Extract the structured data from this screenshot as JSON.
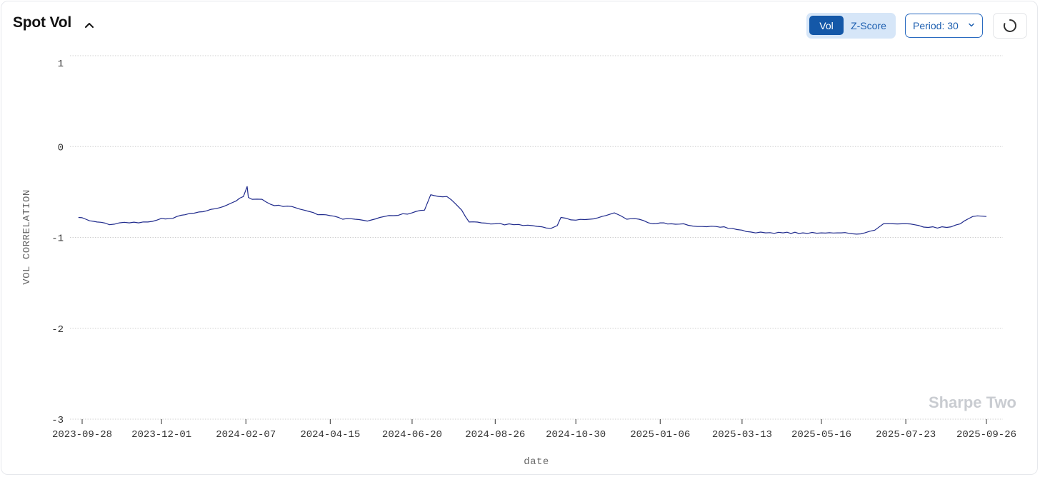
{
  "header": {
    "title": "Spot Vol",
    "collapse_icon": "chevron-up-icon",
    "refresh_icon": "spinner-icon"
  },
  "toggle": {
    "options": [
      "Vol",
      "Z-Score"
    ],
    "selected": "Vol"
  },
  "period_select": {
    "label": "Period: 30",
    "chevron_icon": "chevron-down-icon"
  },
  "watermark": "Sharpe Two",
  "colors": {
    "line": "#1f2a8c",
    "accent": "#1458a8",
    "accent_light": "#d6e6f8",
    "grid": "#cfcfcf"
  },
  "chart_data": {
    "type": "line",
    "xlabel": "date",
    "ylabel": "VOL CORRELATION",
    "ylim": [
      -3,
      1
    ],
    "yticks": [
      1,
      0,
      -1,
      -2,
      -3
    ],
    "xlim": [
      "2023-09-28",
      "2025-09-26"
    ],
    "xticks": [
      "2023-09-28",
      "2023-12-01",
      "2024-02-07",
      "2024-04-15",
      "2024-06-20",
      "2024-08-26",
      "2024-10-30",
      "2025-01-06",
      "2025-03-13",
      "2025-05-16",
      "2025-07-23",
      "2025-09-26"
    ],
    "grid": "horizontal dotted",
    "series": [
      {
        "values_x": [
          "2023-09-25",
          "2023-10-01",
          "2023-10-10",
          "2023-10-20",
          "2023-10-28",
          "2023-11-05",
          "2023-11-20",
          "2023-12-01",
          "2023-12-10",
          "2023-12-20",
          "2023-12-31",
          "2024-01-10",
          "2024-01-20",
          "2024-01-30",
          "2024-02-05",
          "2024-02-08",
          "2024-02-09",
          "2024-02-12",
          "2024-02-20",
          "2024-03-01",
          "2024-03-15",
          "2024-03-25",
          "2024-04-05",
          "2024-04-15",
          "2024-04-25",
          "2024-05-05",
          "2024-05-15",
          "2024-05-25",
          "2024-06-05",
          "2024-06-20",
          "2024-06-30",
          "2024-07-05",
          "2024-07-08",
          "2024-07-18",
          "2024-07-25",
          "2024-07-30",
          "2024-08-05",
          "2024-08-15",
          "2024-08-26",
          "2024-09-10",
          "2024-09-25",
          "2024-10-10",
          "2024-10-15",
          "2024-10-18",
          "2024-10-30",
          "2024-11-10",
          "2024-11-20",
          "2024-11-30",
          "2024-12-05",
          "2024-12-10",
          "2024-12-20",
          "2024-12-31",
          "2025-01-06",
          "2025-01-15",
          "2025-01-25",
          "2025-02-05",
          "2025-02-20",
          "2025-03-05",
          "2025-03-13",
          "2025-03-20",
          "2025-04-01",
          "2025-04-15",
          "2025-05-01",
          "2025-05-16",
          "2025-06-01",
          "2025-06-10",
          "2025-06-20",
          "2025-06-28",
          "2025-07-05",
          "2025-07-20",
          "2025-07-30",
          "2025-08-10",
          "2025-08-25",
          "2025-09-05",
          "2025-09-15",
          "2025-09-26"
        ],
        "values_y": [
          -0.78,
          -0.8,
          -0.83,
          -0.86,
          -0.84,
          -0.84,
          -0.83,
          -0.79,
          -0.79,
          -0.75,
          -0.72,
          -0.69,
          -0.66,
          -0.6,
          -0.55,
          -0.44,
          -0.56,
          -0.58,
          -0.58,
          -0.65,
          -0.66,
          -0.7,
          -0.75,
          -0.76,
          -0.8,
          -0.8,
          -0.82,
          -0.78,
          -0.76,
          -0.73,
          -0.7,
          -0.53,
          -0.54,
          -0.55,
          -0.63,
          -0.7,
          -0.83,
          -0.84,
          -0.85,
          -0.86,
          -0.87,
          -0.9,
          -0.87,
          -0.78,
          -0.81,
          -0.8,
          -0.77,
          -0.73,
          -0.76,
          -0.8,
          -0.8,
          -0.85,
          -0.84,
          -0.85,
          -0.85,
          -0.88,
          -0.88,
          -0.9,
          -0.92,
          -0.94,
          -0.95,
          -0.95,
          -0.95,
          -0.95,
          -0.95,
          -0.96,
          -0.95,
          -0.92,
          -0.85,
          -0.85,
          -0.86,
          -0.89,
          -0.89,
          -0.85,
          -0.77,
          -0.77
        ]
      }
    ]
  }
}
